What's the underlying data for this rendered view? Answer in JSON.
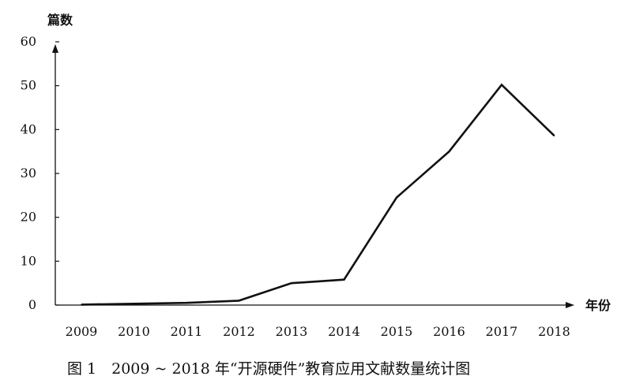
{
  "chart_data": {
    "type": "line",
    "title": "图 1　2009 ~ 2018 年“开源硬件”教育应用文献数量统计图",
    "xlabel": "年份",
    "ylabel": "篇数",
    "x": [
      "2009",
      "2010",
      "2011",
      "2012",
      "2013",
      "2014",
      "2015",
      "2016",
      "2017",
      "2018"
    ],
    "series": [
      {
        "values": [
          0.1,
          0.3,
          0.5,
          1.0,
          5.0,
          5.8,
          24.5,
          35.0,
          50.2,
          38.6
        ]
      }
    ],
    "yticks": [
      "0",
      "10",
      "20",
      "30",
      "40",
      "50",
      "60"
    ],
    "ylim": [
      0,
      60
    ],
    "grid": false,
    "legend": "none",
    "line_color": "#111111"
  }
}
